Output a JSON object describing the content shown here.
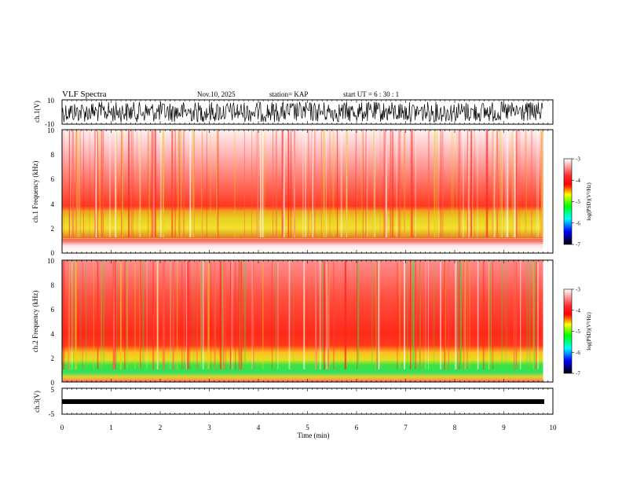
{
  "header": {
    "title": "VLF Spectra",
    "date": "Nov.10, 2025",
    "station": "station= KAP",
    "start_ut": "start  UT =   6  : 30 : 1"
  },
  "chart_data": {
    "type": "heatmap",
    "title": "VLF Spectra",
    "time_axis": {
      "label": "Time (min)",
      "range": [
        0,
        10
      ],
      "ticks": [
        "0",
        "1",
        "2",
        "3",
        "4",
        "5",
        "6",
        "7",
        "8",
        "9",
        "10"
      ],
      "data_end_min": 9.8
    },
    "panels": [
      {
        "id": "ch1-waveform",
        "kind": "waveform",
        "ylabel": "ch.1(V)",
        "ylim": [
          -10,
          10
        ],
        "ytick_labels": [
          "10",
          "-10"
        ]
      },
      {
        "id": "ch1-spectrogram",
        "kind": "spectrogram",
        "ylabel": "ch.1\nFrequency (kHz)",
        "ylim": [
          0,
          10
        ],
        "ytick_labels": [
          "0",
          "2",
          "4",
          "6",
          "8",
          "10"
        ],
        "bands_khz": [
          {
            "from": 0.0,
            "to": 0.5,
            "level": "white-stripes"
          },
          {
            "from": 1.0,
            "to": 3.5,
            "level": "yellow-green"
          }
        ]
      },
      {
        "id": "ch2-spectrogram",
        "kind": "spectrogram",
        "ylabel": "ch.2\nFrequency (kHz)",
        "ylim": [
          0,
          10
        ],
        "ytick_labels": [
          "0",
          "2",
          "4",
          "6",
          "8",
          "10"
        ],
        "bands_khz": [
          {
            "from": 0.3,
            "to": 1.8,
            "level": "green"
          },
          {
            "from": 1.8,
            "to": 3.0,
            "level": "yellow"
          }
        ]
      },
      {
        "id": "ch3-waveform",
        "kind": "waveform",
        "ylabel": "ch.3(V)",
        "ylim": [
          -5,
          5
        ],
        "ytick_labels": [
          "5",
          "-5"
        ],
        "level_v": -0.5
      }
    ],
    "colorbar": {
      "label": "log(PSD)(V²/Hz)",
      "range": [
        -7,
        -3
      ],
      "tick_labels": [
        "-3",
        "-4",
        "-5",
        "-6",
        "-7"
      ],
      "colors": [
        "#ffffff",
        "#ff0000",
        "#ffff00",
        "#00ff00",
        "#00ffff",
        "#0000ff",
        "#000000"
      ]
    }
  }
}
